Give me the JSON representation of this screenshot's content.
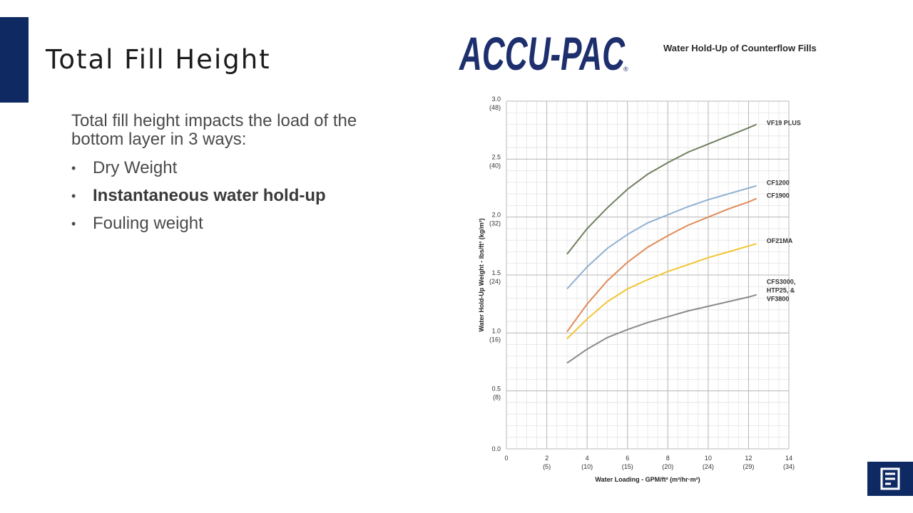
{
  "slide": {
    "title": "Total Fill Height",
    "intro": "Total fill height impacts the load of the bottom layer in 3 ways:",
    "bullets": [
      {
        "text": "Dry Weight",
        "bold": false
      },
      {
        "text": "Instantaneous water hold-up",
        "bold": true
      },
      {
        "text": "Fouling weight",
        "bold": false
      }
    ]
  },
  "logo": {
    "text": "ACCU-PAC",
    "mark": "®",
    "color": "#1e2f6e"
  },
  "corner_icon": "document-icon",
  "colors": {
    "accent": "#0f2a63"
  },
  "chart_data": {
    "type": "line",
    "title": "Water Hold-Up of Counterflow Fills",
    "xlabel": "Water Loading - GPM/ft² (m³/hr·m²)",
    "ylabel": "Water Hold-Up Weight - lbs/ft³ (kg/m³)",
    "xlim": [
      0,
      14
    ],
    "ylim": [
      0,
      3.0
    ],
    "grid": true,
    "x_ticks": [
      {
        "value": 0,
        "label": "0",
        "sub": ""
      },
      {
        "value": 2,
        "label": "2",
        "sub": "(5)"
      },
      {
        "value": 4,
        "label": "4",
        "sub": "(10)"
      },
      {
        "value": 6,
        "label": "6",
        "sub": "(15)"
      },
      {
        "value": 8,
        "label": "8",
        "sub": "(20)"
      },
      {
        "value": 10,
        "label": "10",
        "sub": "(24)"
      },
      {
        "value": 12,
        "label": "12",
        "sub": "(29)"
      },
      {
        "value": 14,
        "label": "14",
        "sub": "(34)"
      }
    ],
    "y_ticks": [
      {
        "value": 0.0,
        "label": "0.0",
        "sub": ""
      },
      {
        "value": 0.5,
        "label": "0.5",
        "sub": "(8)"
      },
      {
        "value": 1.0,
        "label": "1.0",
        "sub": "(16)"
      },
      {
        "value": 1.5,
        "label": "1.5",
        "sub": "(24)"
      },
      {
        "value": 2.0,
        "label": "2.0",
        "sub": "(32)"
      },
      {
        "value": 2.5,
        "label": "2.5",
        "sub": "(40)"
      },
      {
        "value": 3.0,
        "label": "3.0",
        "sub": "(48)"
      }
    ],
    "x": [
      3,
      4,
      5,
      6,
      7,
      8,
      9,
      10,
      11,
      12,
      12.4
    ],
    "series": [
      {
        "name": "VF19 PLUS",
        "color": "#6f7f5e",
        "values": [
          1.68,
          1.9,
          2.08,
          2.24,
          2.37,
          2.47,
          2.56,
          2.63,
          2.7,
          2.77,
          2.8
        ]
      },
      {
        "name": "CF1200",
        "color": "#8fb0d0",
        "values": [
          1.38,
          1.57,
          1.73,
          1.85,
          1.95,
          2.02,
          2.09,
          2.15,
          2.2,
          2.25,
          2.27
        ]
      },
      {
        "name": "CF1900",
        "color": "#e08a58",
        "values": [
          1.01,
          1.25,
          1.45,
          1.61,
          1.74,
          1.84,
          1.93,
          2.0,
          2.07,
          2.13,
          2.16
        ]
      },
      {
        "name": "OF21MA",
        "color": "#f2c530",
        "values": [
          0.95,
          1.12,
          1.27,
          1.38,
          1.46,
          1.53,
          1.59,
          1.65,
          1.7,
          1.75,
          1.77
        ]
      },
      {
        "name": "CFS3000, HTP25, & VF3800",
        "color": "#8a8a8a",
        "values": [
          0.74,
          0.86,
          0.96,
          1.03,
          1.09,
          1.14,
          1.19,
          1.23,
          1.27,
          1.31,
          1.33
        ]
      }
    ],
    "series_label_lines": [
      [
        "VF19 PLUS"
      ],
      [
        "CF1200"
      ],
      [
        "CF1900"
      ],
      [
        "OF21MA"
      ],
      [
        "CFS3000,",
        "HTP25, &",
        "VF3800"
      ]
    ]
  }
}
